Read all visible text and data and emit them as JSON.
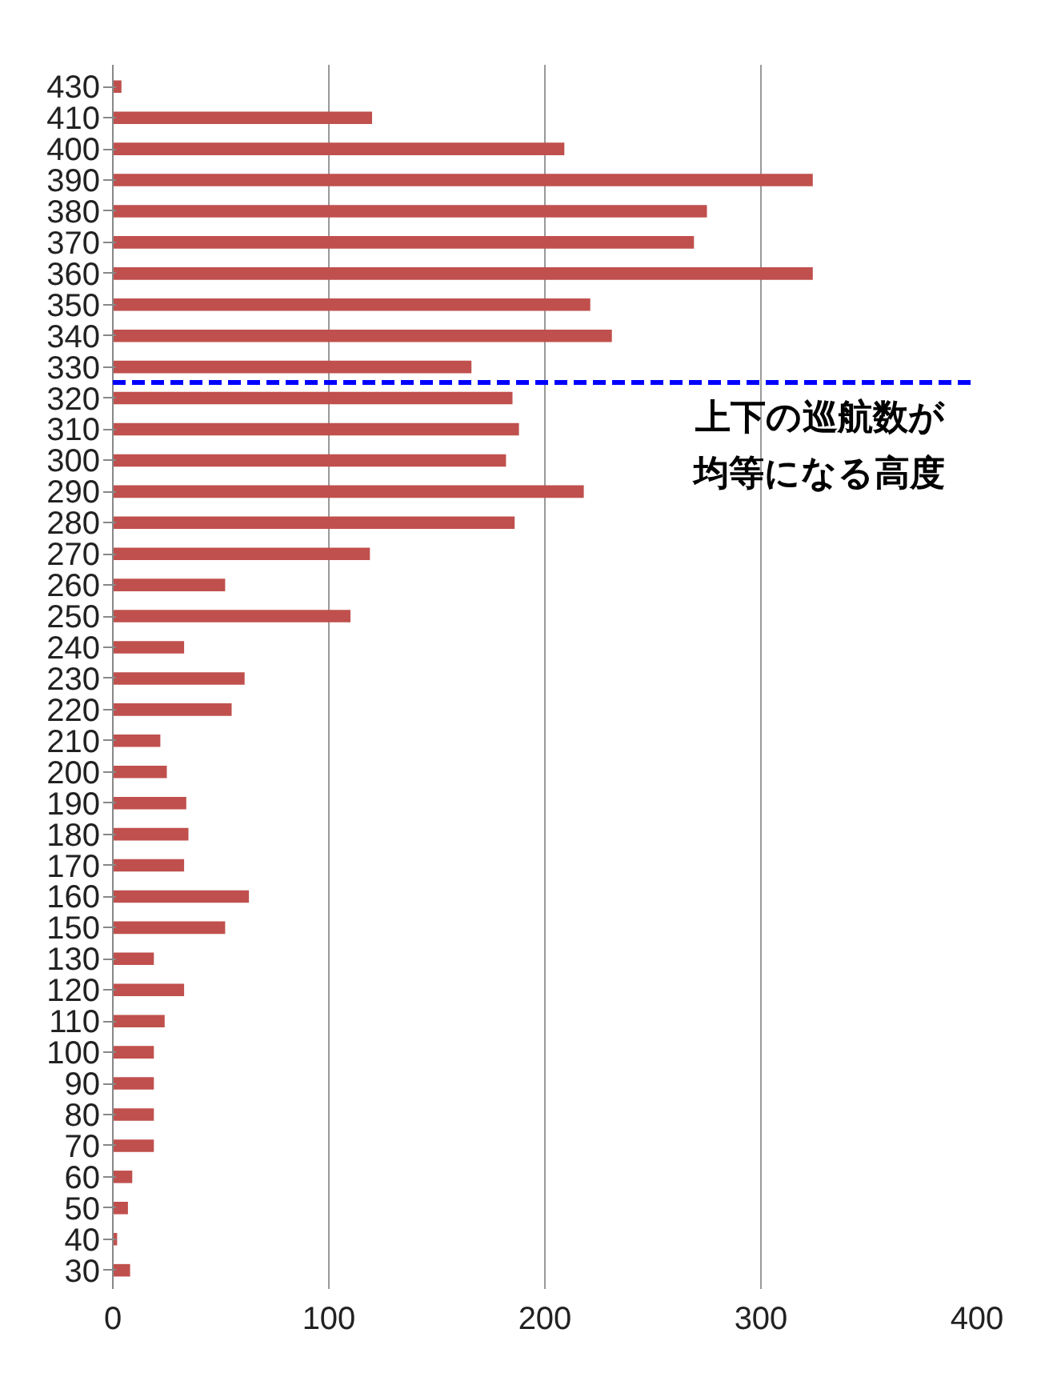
{
  "chart_data": {
    "type": "bar",
    "orientation": "horizontal",
    "categories": [
      "430",
      "410",
      "400",
      "390",
      "380",
      "370",
      "360",
      "350",
      "340",
      "330",
      "320",
      "310",
      "300",
      "290",
      "280",
      "270",
      "260",
      "250",
      "240",
      "230",
      "220",
      "210",
      "200",
      "190",
      "180",
      "170",
      "160",
      "150",
      "130",
      "120",
      "110",
      "100",
      "90",
      "80",
      "70",
      "60",
      "50",
      "40",
      "30"
    ],
    "values": [
      4,
      120,
      209,
      324,
      275,
      269,
      324,
      221,
      231,
      166,
      185,
      188,
      182,
      218,
      186,
      119,
      52,
      110,
      33,
      61,
      55,
      22,
      25,
      34,
      35,
      33,
      63,
      52,
      19,
      33,
      24,
      19,
      19,
      19,
      19,
      9,
      7,
      2,
      8
    ],
    "color": "#c0504d",
    "xlim": [
      0,
      400
    ],
    "xticks": [
      0,
      100,
      200,
      300,
      400
    ],
    "grid": "x",
    "ref_lines": [
      {
        "axis": "y",
        "value": "330",
        "label": "上下の巡航数が均等になる高度",
        "color": "#0000ff",
        "line_style": "dashed"
      }
    ]
  }
}
